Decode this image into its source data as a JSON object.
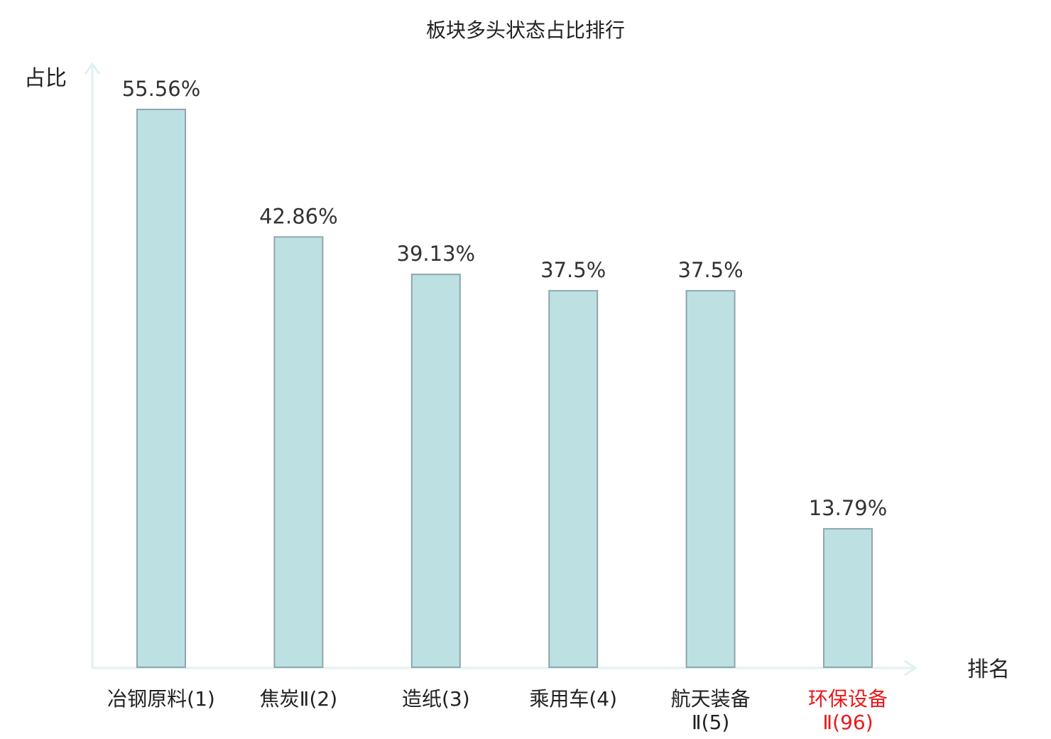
{
  "chart_data": {
    "type": "bar",
    "title": "板块多头状态占比排行",
    "ylabel": "占比",
    "xlabel": "排名",
    "categories": [
      [
        "冶钢原料(1)"
      ],
      [
        "焦炭Ⅱ(2)"
      ],
      [
        "造纸(3)"
      ],
      [
        "乘用车(4)"
      ],
      [
        "航天装备",
        "Ⅱ(5)"
      ],
      [
        "环保设备",
        "Ⅱ(96)"
      ]
    ],
    "values": [
      55.56,
      42.86,
      39.13,
      37.5,
      37.5,
      13.79
    ],
    "value_labels": [
      "55.56%",
      "42.86%",
      "39.13%",
      "37.5%",
      "37.5%",
      "13.79%"
    ],
    "highlight_index": 5,
    "ylim": [
      0,
      55.56
    ],
    "grid": false,
    "colors": {
      "bar_fill": "#bde0e3",
      "bar_stroke": "#8fa7aa",
      "axis": "#dff1f0",
      "label": "#222222",
      "highlight_label": "#e8191a"
    }
  }
}
